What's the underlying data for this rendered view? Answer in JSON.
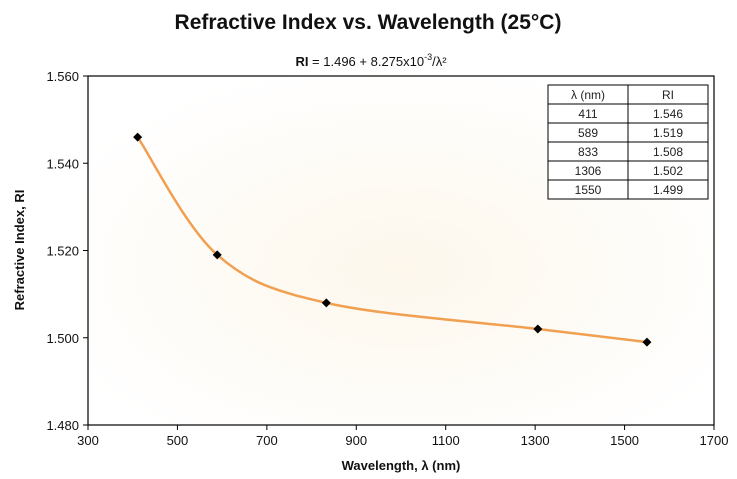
{
  "chart_data": {
    "type": "scatter",
    "title": "Refractive Index vs. Wavelength (25°C)",
    "subtitle": {
      "prefix": "RI",
      "body": " = 1.496 + 8.275x10",
      "exponent": "-3",
      "suffix": "/λ²"
    },
    "xlabel": "Wavelength, λ (nm)",
    "ylabel": "Refractive Index, RI",
    "xlim": [
      300,
      1700
    ],
    "ylim": [
      1.48,
      1.56
    ],
    "xticks": [
      "300",
      "500",
      "700",
      "900",
      "1100",
      "1300",
      "1500",
      "1700"
    ],
    "yticks": [
      "1.480",
      "1.500",
      "1.520",
      "1.540",
      "1.560"
    ],
    "grid": false,
    "series": [
      {
        "x": [
          411,
          589,
          833,
          1306,
          1550
        ],
        "y": [
          1.546,
          1.519,
          1.508,
          1.502,
          1.499
        ],
        "marker": "diamond",
        "marker_color": "#000000",
        "line_color": "#f0a050",
        "line": "smooth"
      }
    ],
    "table": {
      "position": "top-right",
      "headers": [
        "λ (nm)",
        "RI"
      ],
      "rows": [
        [
          "411",
          "1.546"
        ],
        [
          "589",
          "1.519"
        ],
        [
          "833",
          "1.508"
        ],
        [
          "1306",
          "1.502"
        ],
        [
          "1550",
          "1.499"
        ]
      ]
    }
  }
}
